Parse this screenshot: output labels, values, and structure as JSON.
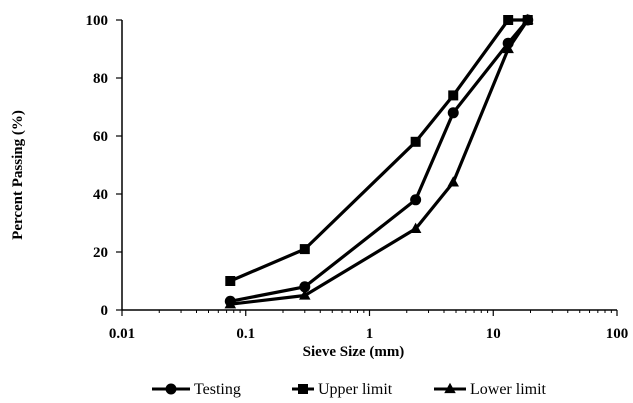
{
  "chart_data": {
    "type": "line",
    "xlabel": "Sieve Size (mm)",
    "ylabel": "Percent Passing (%)",
    "xscale": "log",
    "xlim": [
      0.01,
      100
    ],
    "ylim": [
      0,
      100
    ],
    "x_ticks": [
      0.01,
      0.1,
      1,
      10,
      100
    ],
    "x_tick_labels": [
      "0.01",
      "0.1",
      "1",
      "10",
      "100"
    ],
    "y_ticks": [
      0,
      20,
      40,
      60,
      80,
      100
    ],
    "y_tick_labels": [
      "0",
      "20",
      "40",
      "60",
      "80",
      "100"
    ],
    "grid": false,
    "legend_position": "bottom",
    "series": [
      {
        "name": "Testing",
        "marker": "circle",
        "color": "#000000",
        "x": [
          0.075,
          0.3,
          2.36,
          4.75,
          13.2,
          19
        ],
        "y": [
          3,
          8,
          38,
          68,
          92,
          100
        ]
      },
      {
        "name": "Upper limit",
        "marker": "square",
        "color": "#000000",
        "x": [
          0.075,
          0.3,
          2.36,
          4.75,
          13.2,
          19
        ],
        "y": [
          10,
          21,
          58,
          74,
          100,
          100
        ]
      },
      {
        "name": "Lower limit",
        "marker": "triangle",
        "color": "#000000",
        "x": [
          0.075,
          0.3,
          2.36,
          4.75,
          13.2,
          19
        ],
        "y": [
          2,
          5,
          28,
          44,
          90,
          100
        ]
      }
    ]
  }
}
